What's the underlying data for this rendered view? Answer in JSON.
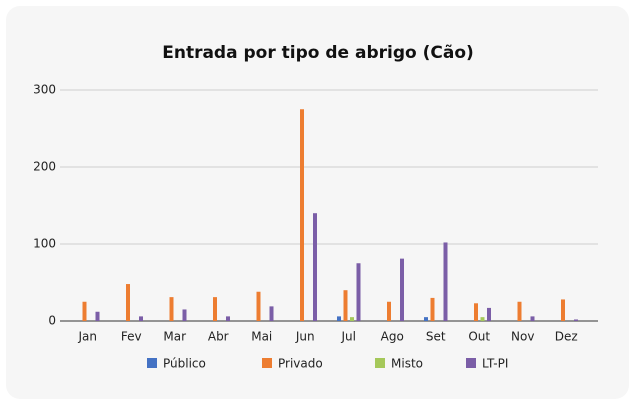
{
  "chart_data": {
    "type": "bar",
    "title": "Entrada por tipo de abrigo (Cão)",
    "categories": [
      "Jan",
      "Fev",
      "Mar",
      "Abr",
      "Mai",
      "Jun",
      "Jul",
      "Ago",
      "Set",
      "Out",
      "Nov",
      "Dez"
    ],
    "series": [
      {
        "name": "Público",
        "color": "#4472c4",
        "values": [
          0,
          0,
          0,
          0,
          0,
          0,
          6,
          0,
          5,
          0,
          0,
          0
        ]
      },
      {
        "name": "Privado",
        "color": "#ed7d31",
        "values": [
          25,
          48,
          31,
          31,
          38,
          275,
          40,
          25,
          30,
          23,
          25,
          28
        ]
      },
      {
        "name": "Misto",
        "color": "#a5c85a",
        "values": [
          0,
          0,
          0,
          0,
          0,
          0,
          5,
          0,
          0,
          5,
          0,
          0
        ]
      },
      {
        "name": "LT-PI",
        "color": "#7b5ea7",
        "values": [
          12,
          6,
          15,
          6,
          19,
          140,
          75,
          81,
          102,
          17,
          6,
          2
        ]
      }
    ],
    "ylim": [
      0,
      300
    ],
    "yticks": [
      0,
      100,
      200,
      300
    ],
    "grid": true,
    "legend": "bottom"
  }
}
